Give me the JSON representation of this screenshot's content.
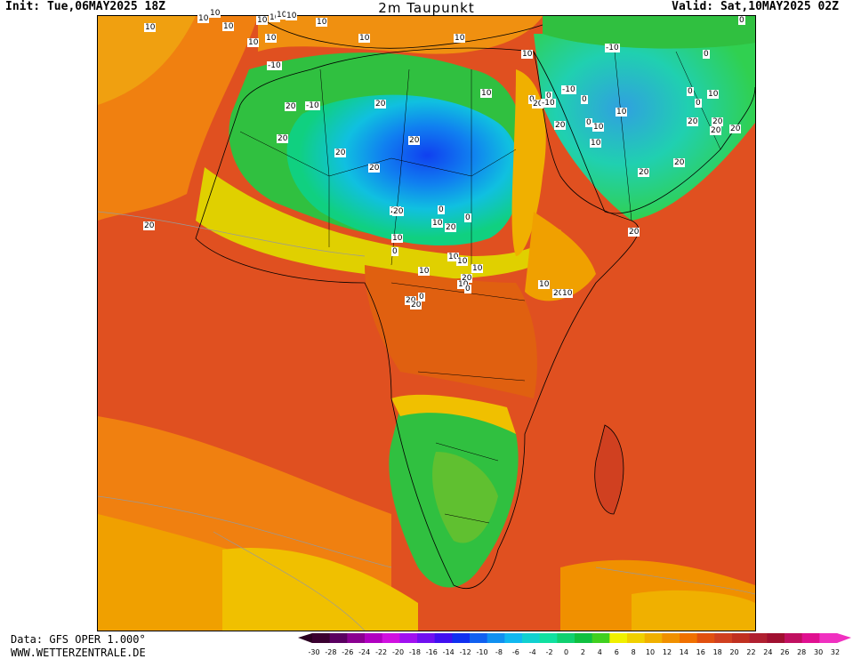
{
  "header": {
    "init": "Init: Tue,06MAY2025 18Z",
    "title": "2m Taupunkt",
    "valid": "Valid: Sat,10MAY2025 02Z"
  },
  "footer": {
    "data_line": "Data: GFS OPER 1.000°",
    "site": "WWW.WETTERZENTRALE.DE"
  },
  "contour_labels": [
    "10",
    "10",
    "10",
    "10",
    "10",
    "10",
    "10",
    "10",
    "10",
    "10",
    "10",
    "10",
    "10",
    "10",
    "-10",
    "0",
    "0",
    "10",
    "-10",
    "-10",
    "0",
    "0",
    "0",
    "20",
    "20",
    "10",
    "-10",
    "-10",
    "0",
    "10",
    "10",
    "0",
    "0",
    "20",
    "20",
    "20",
    "20",
    "20",
    "20",
    "20",
    "20",
    "20",
    "10",
    "20",
    "20",
    "20",
    "20",
    "20",
    "20",
    "20",
    "20",
    "20",
    "10",
    "10",
    "0",
    "0",
    "0",
    "20",
    "10",
    "10",
    "10",
    "10",
    "20",
    "10",
    "0",
    "0",
    "10",
    "20",
    "10"
  ],
  "legend": {
    "colors": [
      "#3a0030",
      "#5a0060",
      "#8a0090",
      "#b000c0",
      "#d010e0",
      "#a010f0",
      "#7010f0",
      "#4010f0",
      "#1030f0",
      "#1060f0",
      "#1090f0",
      "#10b8f0",
      "#10d0d0",
      "#10e0a0",
      "#10d070",
      "#10c040",
      "#40d020",
      "#f0f000",
      "#f0d000",
      "#f0b000",
      "#f09000",
      "#f07000",
      "#e05010",
      "#d04020",
      "#c03020",
      "#b02030",
      "#a01030",
      "#c01060",
      "#e01090",
      "#f030c0"
    ],
    "ticks": [
      "-30",
      "-28",
      "-26",
      "-24",
      "-22",
      "-20",
      "-18",
      "-16",
      "-14",
      "-12",
      "-10",
      "-8",
      "-6",
      "-4",
      "-2",
      "0",
      "2",
      "4",
      "6",
      "8",
      "10",
      "12",
      "14",
      "16",
      "18",
      "20",
      "22",
      "24",
      "26",
      "28",
      "30",
      "32"
    ]
  }
}
